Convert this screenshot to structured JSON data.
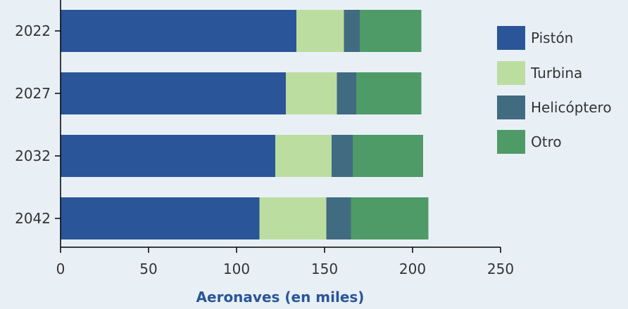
{
  "chart_data": {
    "type": "bar",
    "orientation": "horizontal",
    "stacked": true,
    "categories": [
      "2022",
      "2027",
      "2032",
      "2042"
    ],
    "series": [
      {
        "name": "Pistón",
        "color": "#2a5598",
        "values": [
          134,
          128,
          122,
          113
        ]
      },
      {
        "name": "Turbina",
        "color": "#bcdda0",
        "values": [
          27,
          29,
          32,
          38
        ]
      },
      {
        "name": "Helicóptero",
        "color": "#416b80",
        "values": [
          9,
          11,
          12,
          14
        ]
      },
      {
        "name": "Otro",
        "color": "#4e9b67",
        "values": [
          35,
          37,
          40,
          44
        ]
      }
    ],
    "xlabel": "Aeronaves (en miles)",
    "xlim": [
      0,
      250
    ],
    "xticks": [
      0,
      50,
      100,
      150,
      200,
      250
    ],
    "grid": false,
    "legend_position": "right"
  }
}
